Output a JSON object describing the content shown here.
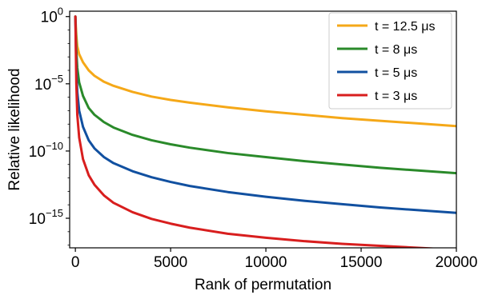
{
  "chart_data": {
    "type": "line",
    "xlabel": "Rank of permutation",
    "ylabel": "Relative likelihood",
    "xlim": [
      -300,
      20000
    ],
    "ylim_log10": [
      -17.2,
      0.4
    ],
    "yscale": "log",
    "grid": false,
    "legend_position": "top-right",
    "x_ticks": [
      {
        "value": 0,
        "label": "0"
      },
      {
        "value": 5000,
        "label": "5000"
      },
      {
        "value": 10000,
        "label": "10000"
      },
      {
        "value": 15000,
        "label": "15000"
      },
      {
        "value": 20000,
        "label": "20000"
      }
    ],
    "y_ticks": [
      {
        "value_log10": 0,
        "base": "10",
        "exp": "0"
      },
      {
        "value_log10": -5,
        "base": "10",
        "exp": "−5"
      },
      {
        "value_log10": -10,
        "base": "10",
        "exp": "−10"
      },
      {
        "value_log10": -15,
        "base": "10",
        "exp": "−15"
      }
    ],
    "x": [
      0,
      50,
      100,
      200,
      400,
      700,
      1000,
      1500,
      2000,
      3000,
      4000,
      5000,
      6000,
      8000,
      10000,
      12000,
      14000,
      16000,
      18000,
      20000
    ],
    "series": [
      {
        "name": "t = 12.5 μs",
        "color": "#f5a818",
        "log10_values": [
          0,
          -1.4,
          -2.2,
          -2.8,
          -3.4,
          -4.0,
          -4.4,
          -4.85,
          -5.15,
          -5.6,
          -5.95,
          -6.2,
          -6.4,
          -6.75,
          -7.05,
          -7.3,
          -7.55,
          -7.75,
          -7.95,
          -8.15
        ]
      },
      {
        "name": "t = 8 μs",
        "color": "#2a8a2a",
        "log10_values": [
          0,
          -2.5,
          -3.8,
          -4.9,
          -5.9,
          -6.8,
          -7.3,
          -7.85,
          -8.25,
          -8.8,
          -9.2,
          -9.5,
          -9.75,
          -10.15,
          -10.45,
          -10.75,
          -11.0,
          -11.25,
          -11.45,
          -11.65
        ]
      },
      {
        "name": "t = 5 μs",
        "color": "#1150a0",
        "log10_values": [
          0,
          -3.8,
          -5.6,
          -7.0,
          -8.2,
          -9.2,
          -9.8,
          -10.45,
          -10.9,
          -11.5,
          -11.95,
          -12.3,
          -12.6,
          -13.05,
          -13.4,
          -13.7,
          -13.95,
          -14.2,
          -14.4,
          -14.6
        ]
      },
      {
        "name": "t = 3 μs",
        "color": "#d81e1e",
        "log10_values": [
          0,
          -5.0,
          -7.3,
          -9.0,
          -10.6,
          -11.8,
          -12.5,
          -13.3,
          -13.85,
          -14.55,
          -15.05,
          -15.4,
          -15.7,
          -16.15,
          -16.45,
          -16.7,
          -16.9,
          -17.05,
          -17.2,
          -17.35
        ]
      }
    ]
  }
}
